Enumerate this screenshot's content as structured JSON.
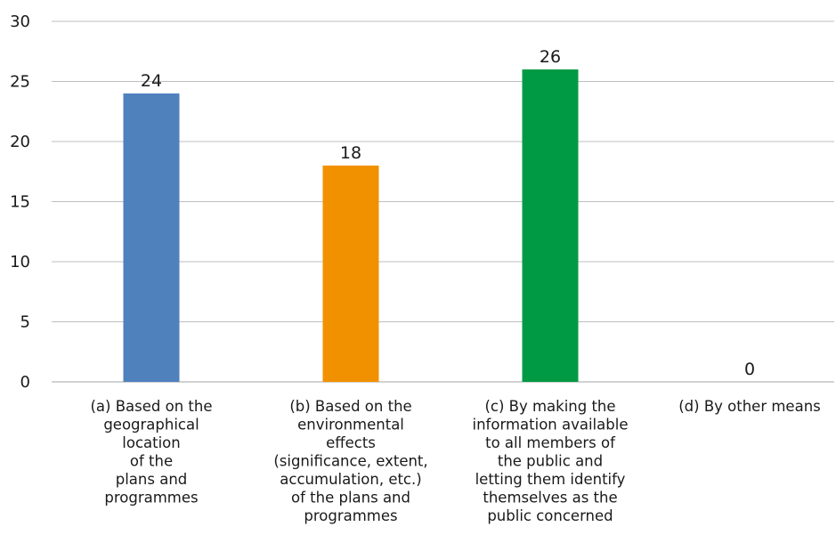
{
  "chart_data": {
    "type": "bar",
    "categories": [
      [
        "(a) Based on the",
        "geographical",
        "location",
        "of the",
        "plans and",
        "programmes"
      ],
      [
        "(b) Based on the",
        "environmental",
        "effects",
        "(significance, extent,",
        "accumulation, etc.)",
        "of the plans and",
        "programmes"
      ],
      [
        "(c) By making the",
        "information available",
        "to all members of",
        "the public and",
        "letting them identify",
        "themselves as the",
        "public concerned"
      ],
      [
        "(d) By other means"
      ]
    ],
    "values": [
      24,
      18,
      26,
      0
    ],
    "colors": [
      "#4f81bd",
      "#f29100",
      "#009a44",
      "#a6a6a6"
    ],
    "ylim": [
      0,
      30
    ],
    "yticks": [
      0,
      5,
      10,
      15,
      20,
      25,
      30
    ],
    "grid": true,
    "title": "",
    "xlabel": "",
    "ylabel": ""
  }
}
